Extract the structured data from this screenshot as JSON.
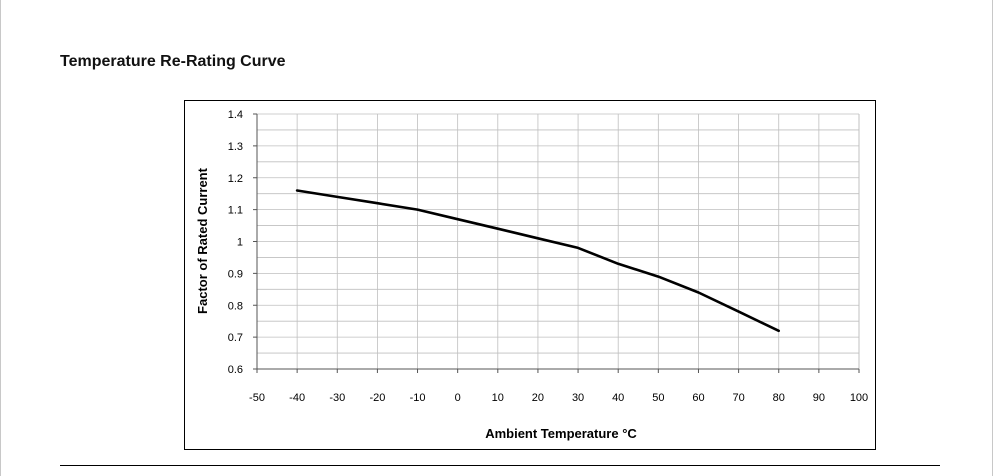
{
  "section_title": "Temperature Re-Rating Curve",
  "chart_data": {
    "type": "line",
    "title": "",
    "xlabel": "Ambient Temperature °C",
    "ylabel": "Factor of Rated Current",
    "xlim": [
      -50,
      100
    ],
    "ylim": [
      0.6,
      1.4
    ],
    "xticks": [
      -50,
      -40,
      -30,
      -20,
      -10,
      0,
      10,
      20,
      30,
      40,
      50,
      60,
      70,
      80,
      90,
      100
    ],
    "yticks": [
      0.6,
      0.7,
      0.8,
      0.9,
      1,
      1.1,
      1.2,
      1.3,
      1.4
    ],
    "yticklabels": [
      "0.6",
      "0.7",
      "0.8",
      "0.9",
      "1",
      "1.1",
      "1.2",
      "1.3",
      "1.4"
    ],
    "grid": true,
    "minor_y_grid_step": 0.05,
    "line_color": "#000000",
    "grid_color": "#bfbfbf",
    "series": [
      {
        "x": [
          -40,
          -30,
          -20,
          -10,
          0,
          10,
          20,
          30,
          40,
          50,
          60,
          70,
          80
        ],
        "values": [
          1.16,
          1.14,
          1.12,
          1.1,
          1.07,
          1.04,
          1.01,
          0.98,
          0.93,
          0.89,
          0.84,
          0.78,
          0.72
        ]
      }
    ]
  }
}
